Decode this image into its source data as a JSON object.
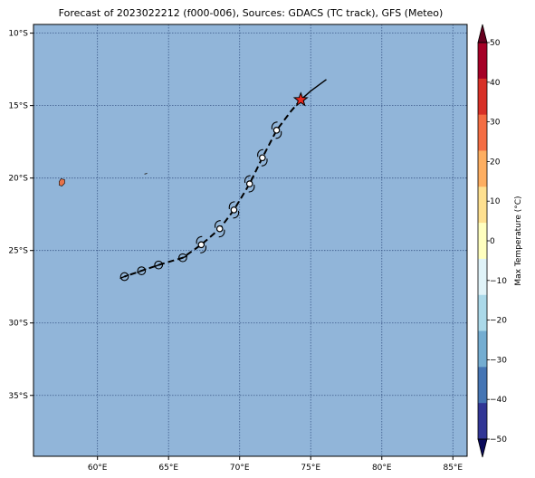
{
  "title": "Forecast of 2023022212 (f000-006), Sources: GDACS (TC track), GFS (Meteo)",
  "map": {
    "lon_range": [
      55.5,
      86.0
    ],
    "lat_range": [
      -39.2,
      -9.4
    ],
    "ocean_color": "#91b5d9",
    "gridline_color": "#3c5a8a",
    "x_ticks": [
      60,
      65,
      70,
      75,
      80,
      85
    ],
    "x_tick_labels": [
      "60°E",
      "65°E",
      "70°E",
      "75°E",
      "80°E",
      "85°E"
    ],
    "y_ticks": [
      -10,
      -15,
      -20,
      -25,
      -30,
      -35
    ],
    "y_tick_labels": [
      "10°S",
      "15°S",
      "20°S",
      "25°S",
      "30°S",
      "35°S"
    ]
  },
  "track": {
    "observed": [
      [
        74.3,
        -14.6
      ],
      [
        75.0,
        -14.0
      ],
      [
        76.1,
        -13.2
      ]
    ],
    "forecast": [
      [
        74.3,
        -14.6
      ],
      [
        73.6,
        -15.4
      ],
      [
        72.6,
        -16.7
      ],
      [
        71.6,
        -18.6
      ],
      [
        70.7,
        -20.4
      ],
      [
        69.6,
        -22.2
      ],
      [
        68.6,
        -23.5
      ],
      [
        67.3,
        -24.6
      ],
      [
        66.0,
        -25.5
      ],
      [
        64.3,
        -26.0
      ],
      [
        63.1,
        -26.4
      ],
      [
        61.9,
        -26.8
      ]
    ],
    "current_position": [
      74.3,
      -14.6
    ],
    "current_marker_color": "#e8281e",
    "symbols": [
      {
        "lon": 72.6,
        "lat": -16.7,
        "type": "cyclone"
      },
      {
        "lon": 71.6,
        "lat": -18.6,
        "type": "cyclone"
      },
      {
        "lon": 70.7,
        "lat": -20.4,
        "type": "cyclone"
      },
      {
        "lon": 69.6,
        "lat": -22.2,
        "type": "cyclone"
      },
      {
        "lon": 68.6,
        "lat": -23.5,
        "type": "cyclone"
      },
      {
        "lon": 67.3,
        "lat": -24.6,
        "type": "cyclone"
      },
      {
        "lon": 66.0,
        "lat": -25.5,
        "type": "low"
      },
      {
        "lon": 64.3,
        "lat": -26.0,
        "type": "low"
      },
      {
        "lon": 63.1,
        "lat": -26.4,
        "type": "low"
      },
      {
        "lon": 61.9,
        "lat": -26.8,
        "type": "low"
      }
    ]
  },
  "land": [
    {
      "name": "Réunion",
      "center": [
        57.5,
        -20.3
      ],
      "color": "#e8734a"
    },
    {
      "name": "Rodrigues",
      "center": [
        63.4,
        -19.7
      ],
      "color": "#333333"
    }
  ],
  "colorbar": {
    "label": "Max Temperature (°C)",
    "min": -50,
    "max": 50,
    "tick_values": [
      50,
      40,
      30,
      20,
      10,
      0,
      -10,
      -20,
      -30,
      -40,
      -50
    ],
    "tick_labels": [
      "50",
      "40",
      "30",
      "20",
      "10",
      "0",
      "−10",
      "−20",
      "−30",
      "−40",
      "−50"
    ],
    "bins_top_to_bottom": [
      "#a50026",
      "#d73027",
      "#f46d43",
      "#fdae61",
      "#fee090",
      "#ffffbf",
      "#e0f3f8",
      "#abd9e9",
      "#74add1",
      "#4575b4",
      "#313695"
    ],
    "extend_top_color": "#67001f",
    "extend_bottom_color": "#0a0a5a"
  }
}
